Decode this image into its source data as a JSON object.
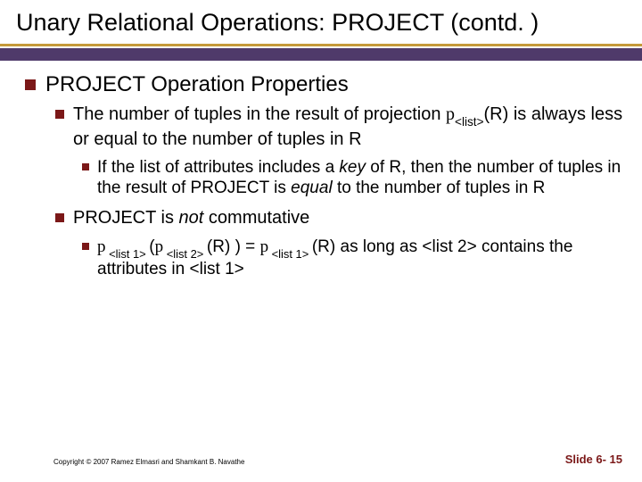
{
  "colors": {
    "accent": "#7b1818",
    "band": "#4f3a6a",
    "underline": "#c59a3a",
    "bullet": "#7b1818",
    "slideno": "#7b1818"
  },
  "title": "Unary Relational Operations: PROJECT (contd. )",
  "heading1": "PROJECT Operation Properties",
  "point1_a": "The number of tuples in the result of projection ",
  "point1_pi": "p",
  "point1_sub": "<list>",
  "point1_b": "(R) is always less or equal to the number of tuples in R",
  "subpoint1_a": "If the list of attributes includes a ",
  "subpoint1_key": "key",
  "subpoint1_b": " of R, then the number of tuples in the result of PROJECT is ",
  "subpoint1_equal": "equal",
  "subpoint1_c": " to the number of tuples in R",
  "point2_a": "PROJECT is ",
  "point2_not": "not",
  "point2_b": " commutative",
  "subpoint2_pi1": "p",
  "subpoint2_s1": " <list 1> ",
  "subpoint2_open": "(",
  "subpoint2_pi2": "p",
  "subpoint2_s2": " <list 2> ",
  "subpoint2_mid": "(R) ) = ",
  "subpoint2_pi3": "p",
  "subpoint2_s3": " <list 1> ",
  "subpoint2_end": "(R) as long as <list 2> contains the attributes in <list 1>",
  "copyright": "Copyright © 2007 Ramez Elmasri and Shamkant B. Navathe",
  "slideno": "Slide 6- 15"
}
